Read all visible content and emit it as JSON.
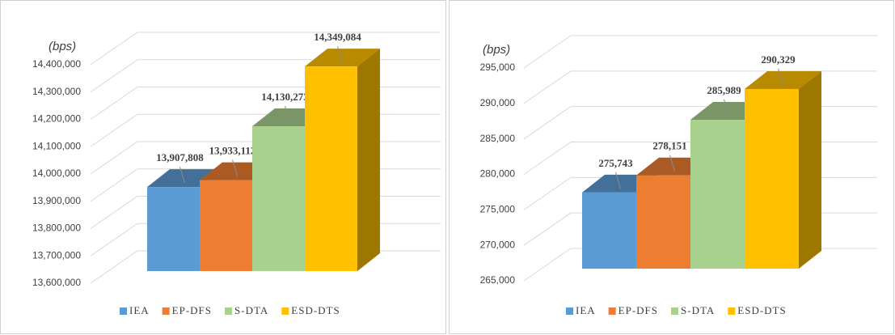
{
  "chart_data": [
    {
      "type": "bar3d",
      "axis_label": "(bps)",
      "categories": [
        "IEA",
        "EP-DFS",
        "S-DTA",
        "ESD-DTS"
      ],
      "values": [
        13907808,
        13933112,
        14130273,
        14349084
      ],
      "value_labels": [
        "13,907,808",
        "13,933,112",
        "14,130,273",
        "14,349,084"
      ],
      "colors": [
        "#5b9bd5",
        "#ed7d31",
        "#a9d18e",
        "#ffc000"
      ],
      "ylim": [
        13600000,
        14400000
      ],
      "yticks": [
        {
          "value": 13600000,
          "label": "13,600,000"
        },
        {
          "value": 13700000,
          "label": "13,700,000"
        },
        {
          "value": 13800000,
          "label": "13,800,000"
        },
        {
          "value": 13900000,
          "label": "13,900,000"
        },
        {
          "value": 14000000,
          "label": "14,000,000"
        },
        {
          "value": 14100000,
          "label": "14,100,000"
        },
        {
          "value": 14200000,
          "label": "14,200,000"
        },
        {
          "value": 14300000,
          "label": "14,300,000"
        },
        {
          "value": 14400000,
          "label": "14,400,000"
        }
      ],
      "grid": true,
      "legend": "bottom"
    },
    {
      "type": "bar3d",
      "axis_label": "(bps)",
      "categories": [
        "IEA",
        "EP-DFS",
        "S-DTA",
        "ESD-DTS"
      ],
      "values": [
        275743,
        278151,
        285989,
        290329
      ],
      "value_labels": [
        "275,743",
        "278,151",
        "285,989",
        "290,329"
      ],
      "colors": [
        "#5b9bd5",
        "#ed7d31",
        "#a9d18e",
        "#ffc000"
      ],
      "ylim": [
        265000,
        295000
      ],
      "yticks": [
        {
          "value": 265000,
          "label": "265,000"
        },
        {
          "value": 270000,
          "label": "270,000"
        },
        {
          "value": 275000,
          "label": "275,000"
        },
        {
          "value": 280000,
          "label": "280,000"
        },
        {
          "value": 285000,
          "label": "285,000"
        },
        {
          "value": 290000,
          "label": "290,000"
        },
        {
          "value": 295000,
          "label": "295,000"
        }
      ],
      "grid": true,
      "legend": "bottom"
    }
  ]
}
